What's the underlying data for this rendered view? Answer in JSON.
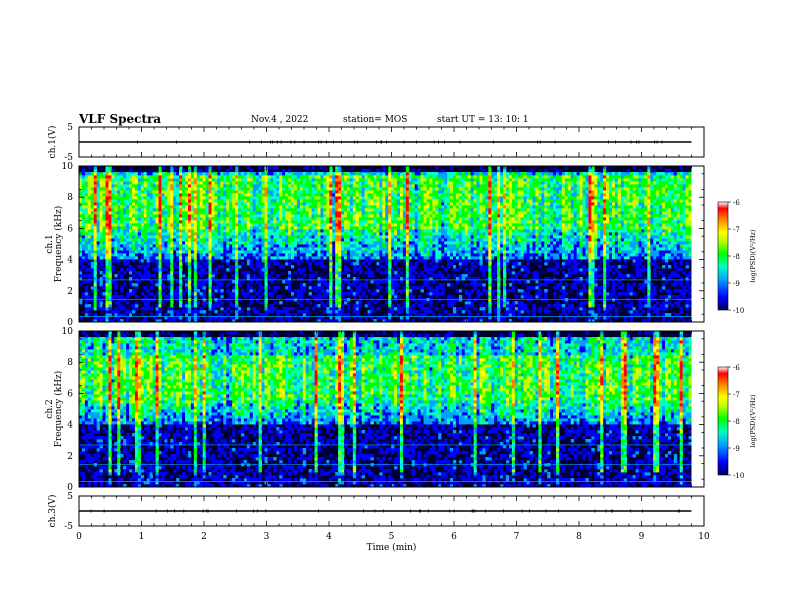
{
  "header": {
    "title": "VLF Spectra",
    "date": "Nov.4 , 2022",
    "station": "station= MOS",
    "start": "start UT = 13: 10: 1"
  },
  "chart_data": [
    {
      "type": "line",
      "panel": "ch1-waveform",
      "ylabel": "ch.1(V)",
      "yticks": [
        "5",
        "-5"
      ],
      "ylim": [
        -5,
        5
      ],
      "xlim": [
        0,
        10
      ],
      "series": [
        {
          "x": [
            0,
            9.8
          ],
          "values": [
            0,
            0
          ]
        }
      ]
    },
    {
      "type": "heatmap",
      "panel": "ch1-spectrogram",
      "ylabel": "ch.1\nFrequency (kHz)",
      "ylabel_ch": "ch.1",
      "ylabel_freq": "Frequency (kHz)",
      "yticks": [
        "0",
        "2",
        "4",
        "6",
        "8",
        "10"
      ],
      "ylim": [
        0,
        10
      ],
      "xlim": [
        0,
        10
      ],
      "data_end_min": 9.8,
      "intense_band_khz": [
        6.0,
        9.5
      ],
      "colorbar": {
        "label": "log(PSD)(V²/Hz)",
        "ticks": [
          "-6",
          "-7",
          "-8",
          "-9",
          "-10"
        ],
        "range": [
          -10,
          -6
        ]
      }
    },
    {
      "type": "heatmap",
      "panel": "ch2-spectrogram",
      "ylabel": "ch.2\nFrequency (kHz)",
      "ylabel_ch": "ch.2",
      "ylabel_freq": "Frequency (kHz)",
      "yticks": [
        "0",
        "2",
        "4",
        "6",
        "8",
        "10"
      ],
      "ylim": [
        0,
        10
      ],
      "xlim": [
        0,
        10
      ],
      "data_end_min": 9.8,
      "intense_band_khz": [
        5.5,
        8.5
      ],
      "colorbar": {
        "label": "log(PSD)(V²/Hz)",
        "ticks": [
          "-6",
          "-7",
          "-8",
          "-9",
          "-10"
        ],
        "range": [
          -10,
          -6
        ]
      }
    },
    {
      "type": "line",
      "panel": "ch3-waveform",
      "ylabel": "ch.3(V)",
      "yticks": [
        "5",
        "-5"
      ],
      "ylim": [
        -5,
        5
      ],
      "xlim": [
        0,
        10
      ],
      "xlabel": "Time (min)",
      "xticks": [
        "0",
        "1",
        "2",
        "3",
        "4",
        "5",
        "6",
        "7",
        "8",
        "9",
        "10"
      ],
      "series": [
        {
          "x": [
            0,
            9.8
          ],
          "values": [
            0,
            0
          ]
        }
      ]
    }
  ],
  "colors": {
    "colormap": [
      "#000060",
      "#0000ff",
      "#00a0ff",
      "#00ffc0",
      "#00ff00",
      "#c0ff00",
      "#ffff00",
      "#ff8000",
      "#ff0000",
      "#ffffff"
    ]
  }
}
